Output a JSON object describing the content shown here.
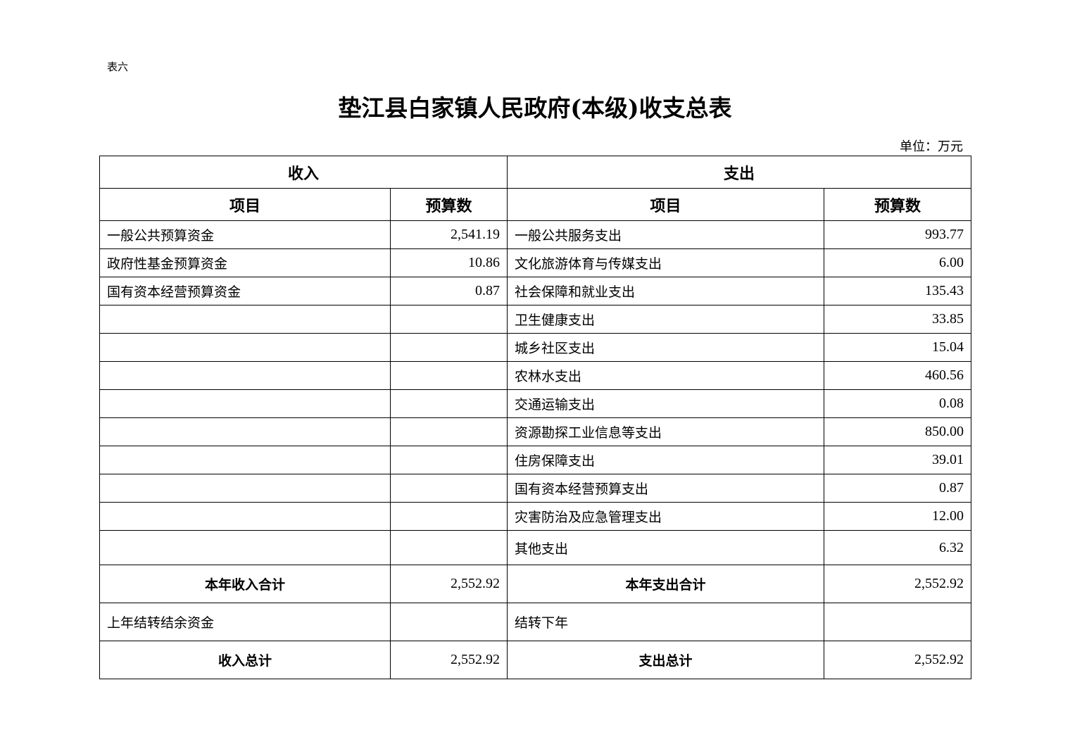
{
  "doc_label": "表六",
  "title": "垫江县白家镇人民政府(本级)收支总表",
  "unit": "单位：万元",
  "headers": {
    "income": "收入",
    "expense": "支出",
    "item": "项目",
    "budget": "预算数"
  },
  "rows": [
    {
      "in_item": "一般公共预算资金",
      "in_val": "2,541.19",
      "ex_item": "一般公共服务支出",
      "ex_val": "993.77"
    },
    {
      "in_item": "政府性基金预算资金",
      "in_val": "10.86",
      "ex_item": "文化旅游体育与传媒支出",
      "ex_val": "6.00"
    },
    {
      "in_item": "国有资本经营预算资金",
      "in_val": "0.87",
      "ex_item": "社会保障和就业支出",
      "ex_val": "135.43"
    },
    {
      "in_item": "",
      "in_val": "",
      "ex_item": "卫生健康支出",
      "ex_val": "33.85"
    },
    {
      "in_item": "",
      "in_val": "",
      "ex_item": "城乡社区支出",
      "ex_val": "15.04"
    },
    {
      "in_item": "",
      "in_val": "",
      "ex_item": "农林水支出",
      "ex_val": "460.56"
    },
    {
      "in_item": "",
      "in_val": "",
      "ex_item": "交通运输支出",
      "ex_val": "0.08"
    },
    {
      "in_item": "",
      "in_val": "",
      "ex_item": "资源勘探工业信息等支出",
      "ex_val": "850.00"
    },
    {
      "in_item": "",
      "in_val": "",
      "ex_item": "住房保障支出",
      "ex_val": "39.01"
    },
    {
      "in_item": "",
      "in_val": "",
      "ex_item": "国有资本经营预算支出",
      "ex_val": "0.87"
    },
    {
      "in_item": "",
      "in_val": "",
      "ex_item": "灾害防治及应急管理支出",
      "ex_val": "12.00"
    },
    {
      "in_item": "",
      "in_val": "",
      "ex_item": "其他支出",
      "ex_val": "6.32"
    }
  ],
  "year_total": {
    "in_label": "本年收入合计",
    "in_val": "2,552.92",
    "ex_label": "本年支出合计",
    "ex_val": "2,552.92"
  },
  "carry": {
    "in_label": "上年结转结余资金",
    "in_val": "",
    "ex_label": "结转下年",
    "ex_val": ""
  },
  "grand_total": {
    "in_label": "收入总计",
    "in_val": "2,552.92",
    "ex_label": "支出总计",
    "ex_val": "2,552.92"
  }
}
